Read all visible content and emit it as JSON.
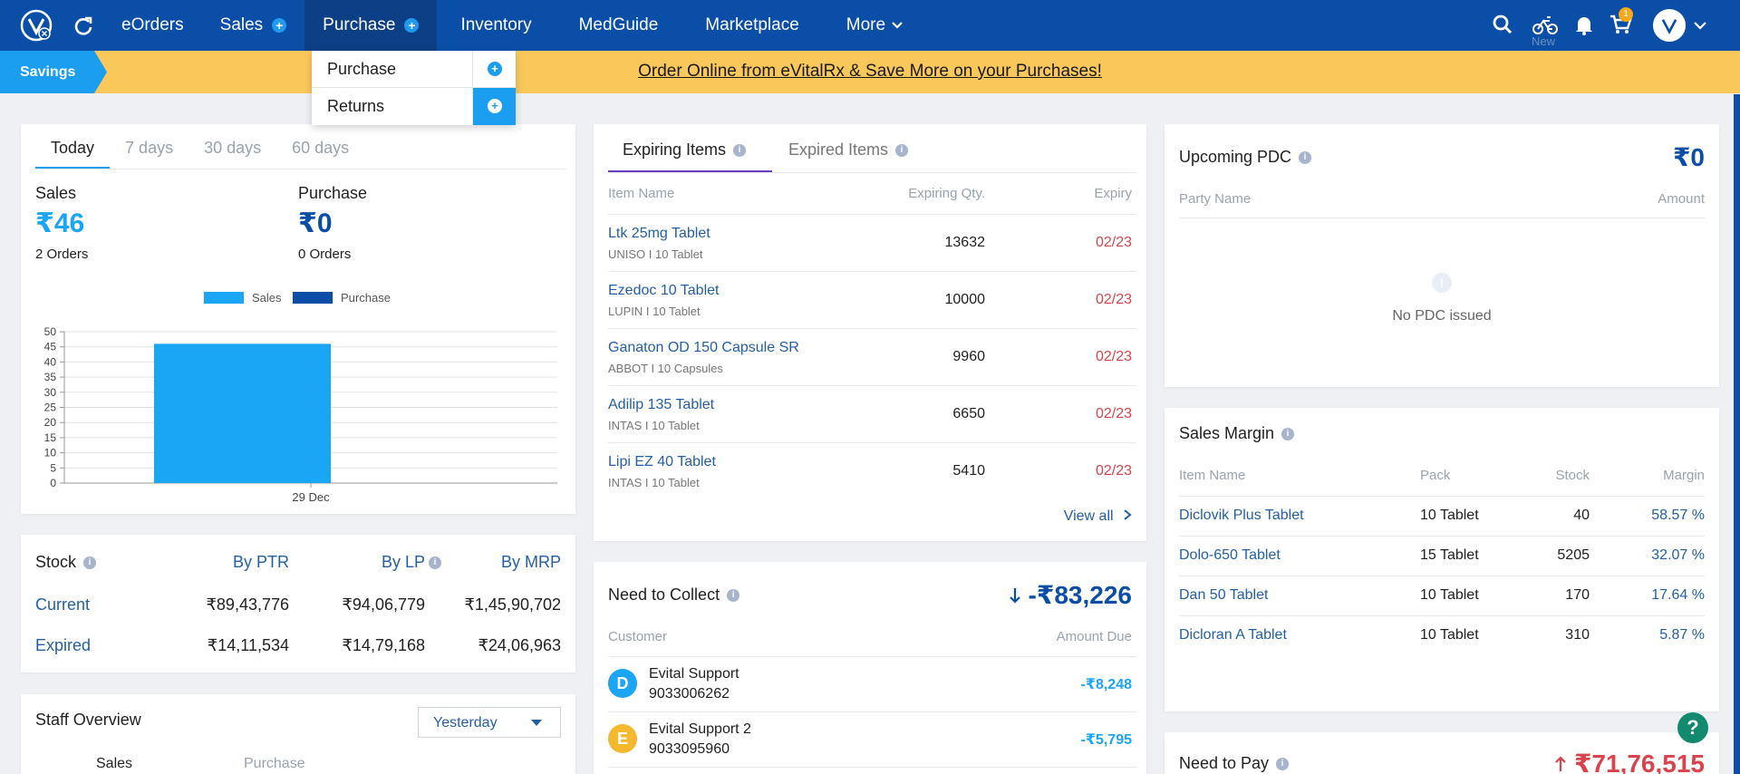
{
  "nav": {
    "items": [
      {
        "label": "eOrders"
      },
      {
        "label": "Sales"
      },
      {
        "label": "Purchase"
      },
      {
        "label": "Inventory"
      },
      {
        "label": "MedGuide"
      },
      {
        "label": "Marketplace"
      },
      {
        "label": "More"
      }
    ],
    "cart_badge": "1",
    "new_label": "New"
  },
  "purchase_dropdown": {
    "items": [
      {
        "label": "Purchase"
      },
      {
        "label": "Returns"
      }
    ]
  },
  "banner": {
    "tag": "Savings",
    "link_text": "Order Online from eVitalRx & Save More on your Purchases!"
  },
  "summary": {
    "tabs": [
      "Today",
      "7 days",
      "30 days",
      "60 days"
    ],
    "sales_label": "Sales",
    "sales_value": "₹46",
    "sales_orders": "2 Orders",
    "purchase_label": "Purchase",
    "purchase_value": "₹0",
    "purchase_orders": "0 Orders"
  },
  "chart_data": {
    "type": "bar",
    "categories": [
      "29 Dec"
    ],
    "series": [
      {
        "name": "Sales",
        "values": [
          46
        ],
        "color": "#1ba5f5"
      },
      {
        "name": "Purchase",
        "values": [
          0
        ],
        "color": "#0b4ea8"
      }
    ],
    "ylim": [
      0,
      50
    ],
    "yticks": [
      0,
      5,
      10,
      15,
      20,
      25,
      30,
      35,
      40,
      45,
      50
    ],
    "legend": "top-center",
    "grid": true
  },
  "expiring": {
    "tab_active": "Expiring Items",
    "tab_other": "Expired Items",
    "col_item": "Item Name",
    "col_qty": "Expiring Qty.",
    "col_expiry": "Expiry",
    "rows": [
      {
        "name": "Ltk 25mg Tablet",
        "sub": "UNISO  I  10 Tablet",
        "qty": "13632",
        "expiry": "02/23"
      },
      {
        "name": "Ezedoc 10 Tablet",
        "sub": "LUPIN  I  10 Tablet",
        "qty": "10000",
        "expiry": "02/23"
      },
      {
        "name": "Ganaton OD 150 Capsule SR",
        "sub": "ABBOT  I  10 Capsules",
        "qty": "9960",
        "expiry": "02/23"
      },
      {
        "name": "Adilip 135 Tablet",
        "sub": "INTAS  I  10 Tablet",
        "qty": "6650",
        "expiry": "02/23"
      },
      {
        "name": "Lipi EZ 40 Tablet",
        "sub": "INTAS  I  10 Tablet",
        "qty": "5410",
        "expiry": "02/23"
      }
    ],
    "view_all": "View all"
  },
  "pdc": {
    "title": "Upcoming PDC",
    "amount": "₹0",
    "col_party": "Party Name",
    "col_amount": "Amount",
    "empty": "No PDC issued"
  },
  "margin": {
    "title": "Sales Margin",
    "cols": [
      "Item Name",
      "Pack",
      "Stock",
      "Margin"
    ],
    "rows": [
      {
        "name": "Diclovik Plus Tablet",
        "pack": "10 Tablet",
        "stock": "40",
        "margin": "58.57 %"
      },
      {
        "name": "Dolo-650 Tablet",
        "pack": "15 Tablet",
        "stock": "5205",
        "margin": "32.07 %"
      },
      {
        "name": "Dan 50 Tablet",
        "pack": "10 Tablet",
        "stock": "170",
        "margin": "17.64 %"
      },
      {
        "name": "Dicloran A Tablet",
        "pack": "10 Tablet",
        "stock": "310",
        "margin": "5.87 %"
      }
    ]
  },
  "stock": {
    "title": "Stock",
    "by_ptr": "By PTR",
    "by_lp": "By LP",
    "by_mrp": "By MRP",
    "current_label": "Current",
    "current": [
      "₹89,43,776",
      "₹94,06,779",
      "₹1,45,90,702"
    ],
    "expired_label": "Expired",
    "expired": [
      "₹14,11,534",
      "₹14,79,168",
      "₹24,06,963"
    ]
  },
  "collect": {
    "title": "Need to Collect",
    "amount": "-₹83,226",
    "col_customer": "Customer",
    "col_due": "Amount Due",
    "rows": [
      {
        "initial": "D",
        "name": "Evital Support",
        "phone": "9033006262",
        "due": "-₹8,248",
        "color": "#1ba5f5"
      },
      {
        "initial": "E",
        "name": "Evital Support 2",
        "phone": "9033095960",
        "due": "-₹5,795",
        "color": "#f5b82e"
      }
    ]
  },
  "staff": {
    "title": "Staff Overview",
    "period": "Yesterday",
    "col_sales": "Sales",
    "col_purchase": "Purchase"
  },
  "pay": {
    "title": "Need to Pay",
    "amount": "₹71,76,515"
  },
  "help": "?"
}
